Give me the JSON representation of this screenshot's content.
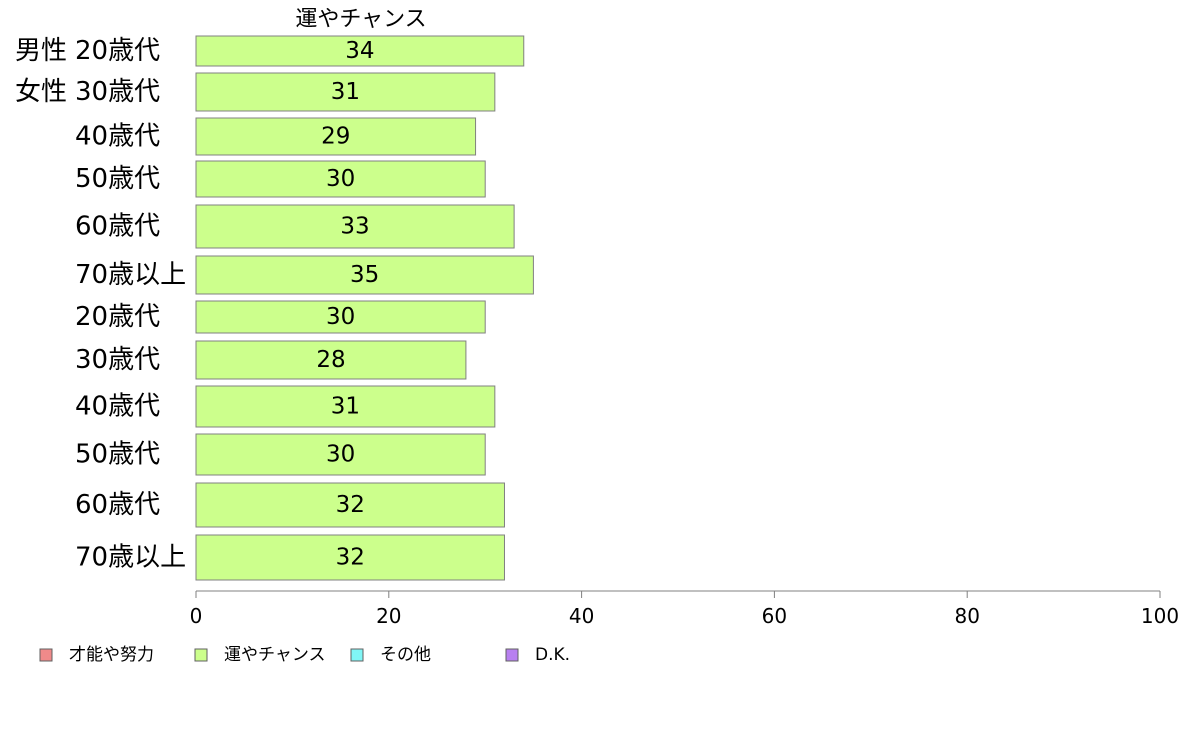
{
  "chart_data": {
    "type": "bar",
    "orientation": "horizontal",
    "series_title": "運やチャンス",
    "groups": [
      "男性",
      "女性",
      "",
      "",
      "",
      "",
      "",
      "",
      "",
      "",
      "",
      ""
    ],
    "categories": [
      "20歳代",
      "30歳代",
      "40歳代",
      "50歳代",
      "60歳代",
      "70歳以上",
      "20歳代",
      "30歳代",
      "40歳代",
      "50歳代",
      "60歳代",
      "70歳以上"
    ],
    "values": [
      34,
      31,
      29,
      30,
      33,
      35,
      30,
      28,
      31,
      30,
      32,
      32
    ],
    "xlim": [
      0,
      100
    ],
    "xticks": [
      "0",
      "20",
      "40",
      "60",
      "80",
      "100"
    ],
    "grid": false,
    "legend_placement": "bottom-left",
    "legend": [
      {
        "label": "才能や努力",
        "color": "#f08a8a"
      },
      {
        "label": "運やチャンス",
        "color": "#ccff8c"
      },
      {
        "label": "その他",
        "color": "#80f6f6"
      },
      {
        "label": "D.K.",
        "color": "#b880f0"
      }
    ],
    "bar_color": "#ccff8c"
  }
}
